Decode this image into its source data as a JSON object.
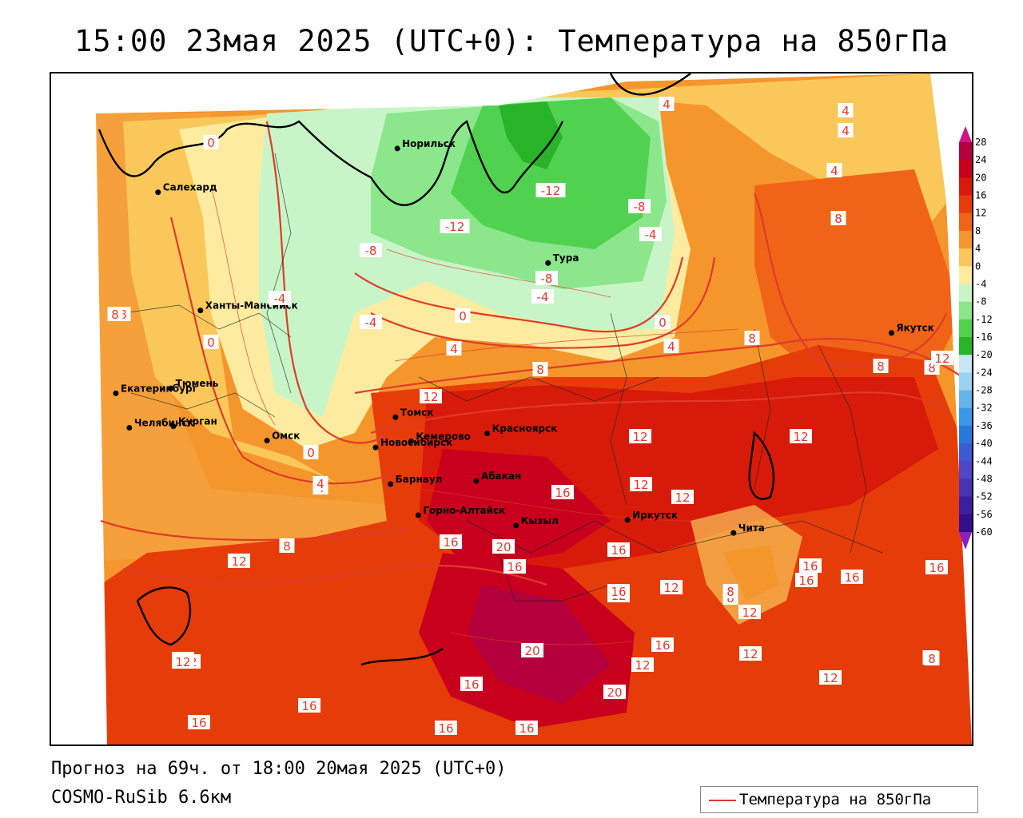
{
  "title": "15:00 23мая 2025 (UTC+0): Температура на 850гПа",
  "forecast_line": "Прогноз на 69ч. от 18:00 20мая 2025 (UTC+0)",
  "model_line": "COSMO-RuSib 6.6км",
  "legend_label": "Температура на 850гПа",
  "colorbar": {
    "ticks": [
      "28",
      "24",
      "20",
      "16",
      "12",
      "8",
      "4",
      "0",
      "-4",
      "-8",
      "-12",
      "-16",
      "-20",
      "-24",
      "-28",
      "-32",
      "-36",
      "-40",
      "-44",
      "-48",
      "-52",
      "-56",
      "-60"
    ],
    "colors": [
      "#b4003c",
      "#c8001e",
      "#d81a0a",
      "#e63c0a",
      "#f06418",
      "#f5962d",
      "#fac85a",
      "#fdeba0",
      "#c8f5c8",
      "#8ce68c",
      "#50d250",
      "#28b428",
      "#c8e6f5",
      "#9bd2f0",
      "#64b4eb",
      "#3c96e6",
      "#2878dc",
      "#3c5ad2",
      "#5046c8",
      "#4632b4",
      "#3c1ea0",
      "#320f8c"
    ]
  },
  "cities": [
    {
      "name": "Якутск",
      "lon": 129.7,
      "lat": 62.0
    },
    {
      "name": "Норильск",
      "lon": 88.2,
      "lat": 69.3
    },
    {
      "name": "Салехард",
      "lon": 66.6,
      "lat": 66.5
    },
    {
      "name": "Тура",
      "lon": 100.2,
      "lat": 64.3
    },
    {
      "name": "Ханты-Мансийск",
      "lon": 69.0,
      "lat": 61.0
    },
    {
      "name": "Екатеринбург",
      "lon": 60.6,
      "lat": 56.8
    },
    {
      "name": "Тюмень",
      "lon": 65.5,
      "lat": 57.2
    },
    {
      "name": "Челябинск",
      "lon": 61.4,
      "lat": 55.2
    },
    {
      "name": "Курган",
      "lon": 65.3,
      "lat": 55.4
    },
    {
      "name": "Омск",
      "lon": 73.4,
      "lat": 55.0
    },
    {
      "name": "Томск",
      "lon": 85.0,
      "lat": 56.5
    },
    {
      "name": "Новосибирск",
      "lon": 82.9,
      "lat": 55.0
    },
    {
      "name": "Кемерово",
      "lon": 86.1,
      "lat": 55.4
    },
    {
      "name": "Красноярск",
      "lon": 92.9,
      "lat": 56.0
    },
    {
      "name": "Барнаул",
      "lon": 83.8,
      "lat": 53.3
    },
    {
      "name": "Абакан",
      "lon": 91.4,
      "lat": 53.7
    },
    {
      "name": "Горно-Алтайск",
      "lon": 85.9,
      "lat": 51.9
    },
    {
      "name": "Кызыл",
      "lon": 94.4,
      "lat": 51.7
    },
    {
      "name": "Иркутск",
      "lon": 104.3,
      "lat": 52.3
    },
    {
      "name": "Чита",
      "lon": 113.5,
      "lat": 52.0
    }
  ],
  "contour_labels": [
    "4",
    "4",
    "4",
    "4",
    "0",
    "8",
    "8",
    "-4",
    "-8",
    "-12",
    "-12",
    "-8",
    "-4",
    "-8",
    "-4",
    "0",
    "4",
    "-4",
    "0",
    "4",
    "8",
    "8",
    "8",
    "8",
    "8",
    "0",
    "4",
    "12",
    "12",
    "12",
    "16",
    "12",
    "20",
    "16",
    "16",
    "16",
    "12",
    "8",
    "16",
    "12",
    "16",
    "12",
    "16",
    "12",
    "12",
    "20",
    "16",
    "16",
    "16",
    "20",
    "16",
    "16",
    "16",
    "12",
    "12",
    "16",
    "8",
    "12",
    "12",
    "12",
    "12",
    "16",
    "8",
    "8",
    "8",
    "12",
    "0",
    "4"
  ]
}
